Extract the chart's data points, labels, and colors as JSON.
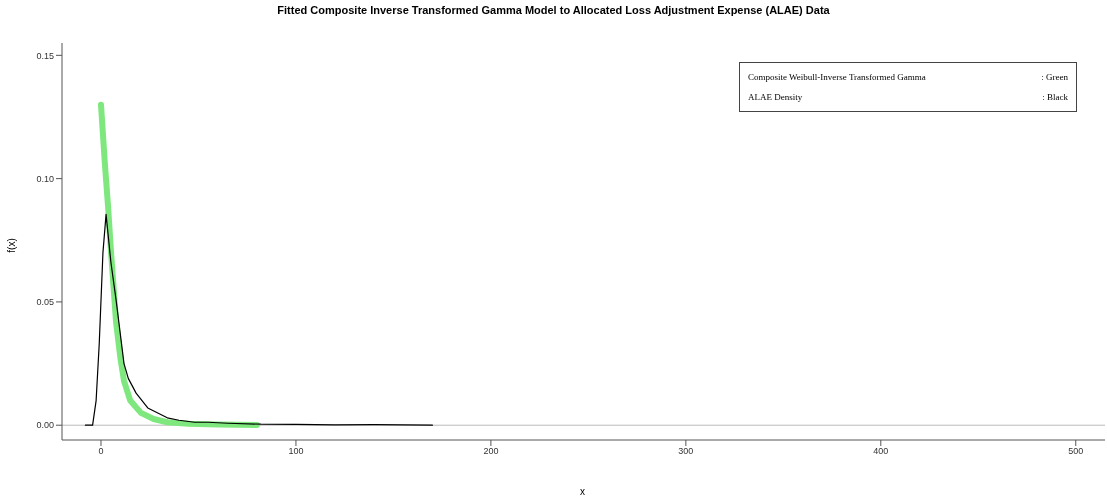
{
  "chart_data": {
    "type": "line",
    "title": "Fitted Composite Inverse Transformed Gamma Model to Allocated Loss Adjustment Expense (ALAE) Data",
    "xlabel": "x",
    "ylabel": "f(x)",
    "xlim": [
      -20,
      515
    ],
    "xticks": [
      0,
      100,
      200,
      300,
      400,
      500
    ],
    "ylim": [
      -0.006,
      0.155
    ],
    "yticks": [
      {
        "value": 0,
        "label": "0.00"
      },
      0.05,
      {
        "value": 0.1,
        "label": "0.10"
      },
      0.15
    ],
    "legend": "top right",
    "marker": "none",
    "line_style": "solid",
    "annotations": [
      ": Green",
      ": Black"
    ],
    "ref_lines": [
      {
        "axis": "y",
        "value": 0,
        "color": "#bbbbbb"
      }
    ],
    "series": [
      {
        "name": "Composite Weibull-Inverse Transformed Gamma",
        "color": "#7ee87e",
        "x": [
          0,
          1,
          2,
          3.6,
          5,
          7.7,
          10,
          11.8,
          15,
          20.5,
          27,
          34,
          45,
          60,
          80
        ],
        "values": [
          0.13,
          0.118,
          0.106,
          0.089,
          0.072,
          0.042,
          0.027,
          0.018,
          0.01,
          0.005,
          0.0025,
          0.0012,
          0.0006,
          0.0003,
          0.0001
        ]
      },
      {
        "name": "ALAE Density",
        "color": "#000000",
        "x": [
          -8,
          -4.3,
          -2.5,
          -0.9,
          1,
          2.6,
          5.1,
          7.7,
          11.8,
          14,
          18,
          24,
          34,
          40,
          48,
          55,
          65,
          82,
          100,
          120,
          140,
          170
        ],
        "values": [
          0,
          0,
          0.01,
          0.033,
          0.07,
          0.0855,
          0.066,
          0.051,
          0.025,
          0.019,
          0.013,
          0.007,
          0.003,
          0.002,
          0.0012,
          0.0012,
          0.0008,
          0.0004,
          0.0003,
          0.0001,
          0.0002,
          0
        ]
      }
    ]
  }
}
